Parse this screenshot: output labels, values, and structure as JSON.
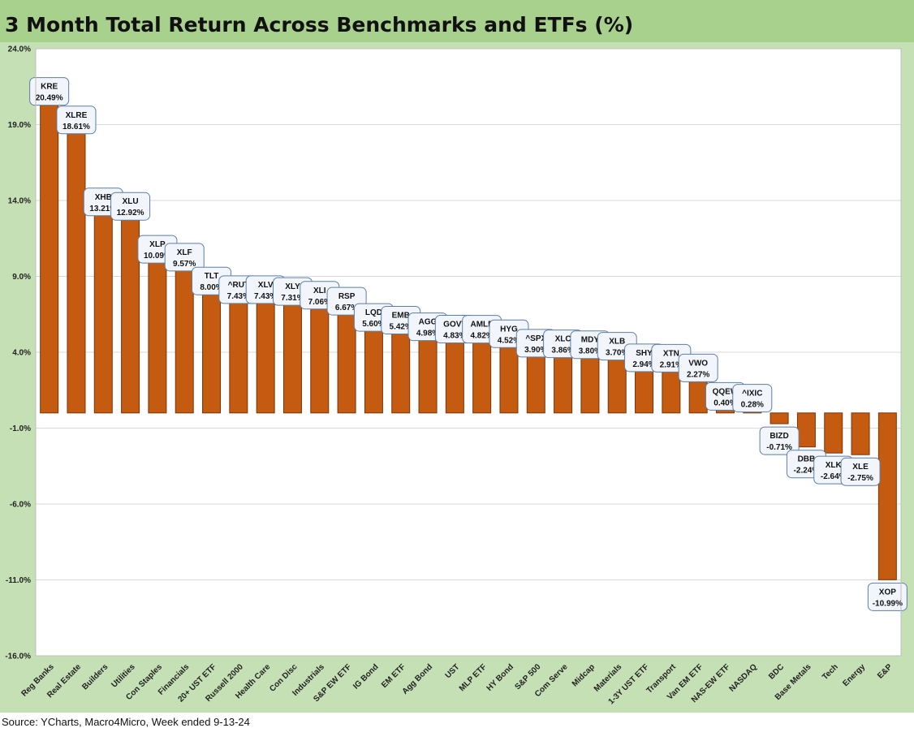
{
  "title": "3 Month Total Return Across Benchmarks and ETFs (%)",
  "source": "Source: YCharts, Macro4Micro, Week ended 9-13-24",
  "colors": {
    "bar": "#c55a11",
    "title_band": "#a9d18e",
    "frame": "#c5e0b4",
    "callout_border": "#5b7fa6",
    "callout_fill": "#f2f6fc"
  },
  "chart_data": {
    "type": "bar",
    "ylim": [
      -16,
      24
    ],
    "yticks": [
      24,
      19,
      14,
      9,
      4,
      -1,
      -6,
      -11,
      -16
    ],
    "ytick_labels": [
      "24.0%",
      "19.0%",
      "14.0%",
      "9.0%",
      "4.0%",
      "-1.0%",
      "-6.0%",
      "-11.0%",
      "-16.0%"
    ],
    "grid": true,
    "categories": [
      "Reg Banks",
      "Real Estate",
      "Builders",
      "Utilities",
      "Con Staples",
      "Financials",
      "20+ UST ETF",
      "Russell 2000",
      "Health Care",
      "Con Disc",
      "Industrials",
      "S&P EW ETF",
      "IG Bond",
      "EM ETF",
      "Agg Bond",
      "UST",
      "MLP ETF",
      "HY Bond",
      "S&P 500",
      "Com Serve",
      "Midcap",
      "Materials",
      "1-3Y UST ETF",
      "Transport",
      "Van EM ETF",
      "NAS-EW ETF",
      "NASDAQ",
      "BDC",
      "Base Metals",
      "Tech",
      "Energy",
      "E&P"
    ],
    "tickers": [
      "KRE",
      "XLRE",
      "XHB",
      "XLU",
      "XLP",
      "XLF",
      "TLT",
      "^RUT",
      "XLV",
      "XLY",
      "XLI",
      "RSP",
      "LQD",
      "EMB",
      "AGG",
      "GOVT",
      "AMLP",
      "HYG",
      "^SPX",
      "XLC",
      "MDY",
      "XLB",
      "SHY",
      "XTN",
      "VWO",
      "QQEW",
      "^IXIC",
      "BIZD",
      "DBB",
      "XLK",
      "XLE",
      "XOP"
    ],
    "values": [
      20.49,
      18.61,
      13.21,
      12.92,
      10.09,
      9.57,
      8.0,
      7.43,
      7.43,
      7.31,
      7.06,
      6.67,
      5.6,
      5.42,
      4.98,
      4.83,
      4.82,
      4.52,
      3.9,
      3.86,
      3.8,
      3.7,
      2.94,
      2.91,
      2.27,
      0.4,
      0.28,
      -0.71,
      -2.24,
      -2.64,
      -2.75,
      -10.99
    ],
    "value_labels": [
      "20.49%",
      "18.61%",
      "13.21%",
      "12.92%",
      "10.09%",
      "9.57%",
      "8.00%",
      "7.43%",
      "7.43%",
      "7.31%",
      "7.06%",
      "6.67%",
      "5.60%",
      "5.42%",
      "4.98%",
      "4.83%",
      "4.82%",
      "4.52%",
      "3.90%",
      "3.86%",
      "3.80%",
      "3.70%",
      "2.94%",
      "2.91%",
      "2.27%",
      "0.40%",
      "0.28%",
      "-0.71%",
      "-2.24%",
      "-2.64%",
      "-2.75%",
      "-10.99%"
    ]
  }
}
